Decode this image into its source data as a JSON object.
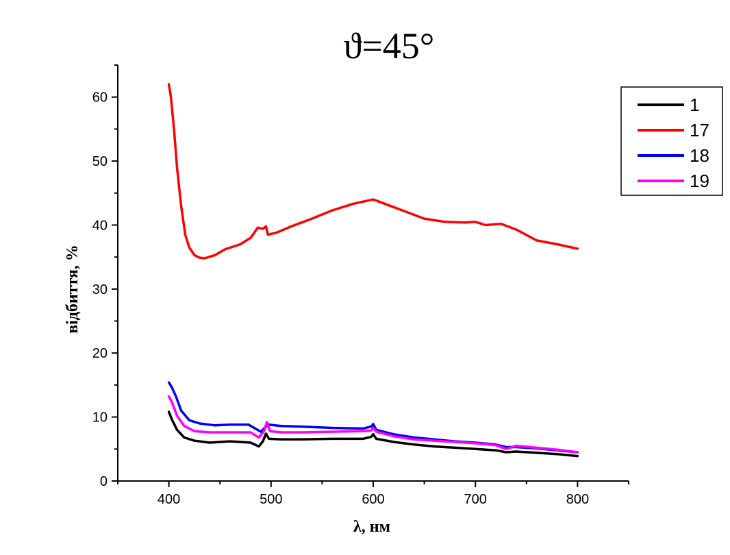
{
  "chart_data": {
    "type": "line",
    "title": "ϑ=45°",
    "xlabel": "λ, нм",
    "ylabel": "відбиття, %",
    "xlim": [
      350,
      850
    ],
    "ylim": [
      0,
      65
    ],
    "x_ticks": [
      400,
      500,
      600,
      700,
      800
    ],
    "y_ticks": [
      0,
      10,
      20,
      30,
      40,
      50,
      60
    ],
    "grid": false,
    "legend_position": "top-right",
    "series": [
      {
        "name": "1",
        "color": "#000000",
        "points": [
          [
            400,
            10.8
          ],
          [
            403,
            9.6
          ],
          [
            408,
            8.0
          ],
          [
            415,
            6.8
          ],
          [
            425,
            6.3
          ],
          [
            440,
            6.0
          ],
          [
            460,
            6.2
          ],
          [
            480,
            6.0
          ],
          [
            488,
            5.4
          ],
          [
            492,
            6.2
          ],
          [
            495,
            7.4
          ],
          [
            498,
            6.6
          ],
          [
            510,
            6.5
          ],
          [
            530,
            6.5
          ],
          [
            560,
            6.6
          ],
          [
            590,
            6.6
          ],
          [
            598,
            6.9
          ],
          [
            600,
            7.3
          ],
          [
            603,
            6.6
          ],
          [
            620,
            6.1
          ],
          [
            640,
            5.7
          ],
          [
            660,
            5.4
          ],
          [
            680,
            5.2
          ],
          [
            700,
            5.0
          ],
          [
            720,
            4.8
          ],
          [
            730,
            4.5
          ],
          [
            740,
            4.6
          ],
          [
            760,
            4.4
          ],
          [
            780,
            4.2
          ],
          [
            800,
            3.9
          ]
        ]
      },
      {
        "name": "17",
        "color": "#ff0000",
        "points": [
          [
            400,
            62
          ],
          [
            402,
            60
          ],
          [
            405,
            55
          ],
          [
            408,
            49
          ],
          [
            412,
            43
          ],
          [
            416,
            38.5
          ],
          [
            420,
            36.5
          ],
          [
            425,
            35.3
          ],
          [
            430,
            34.9
          ],
          [
            435,
            34.8
          ],
          [
            445,
            35.3
          ],
          [
            455,
            36.2
          ],
          [
            470,
            37.0
          ],
          [
            480,
            38.0
          ],
          [
            487,
            39.6
          ],
          [
            492,
            39.4
          ],
          [
            495,
            39.8
          ],
          [
            497,
            38.5
          ],
          [
            505,
            38.8
          ],
          [
            520,
            39.8
          ],
          [
            540,
            41.0
          ],
          [
            560,
            42.3
          ],
          [
            580,
            43.3
          ],
          [
            600,
            44.0
          ],
          [
            610,
            43.4
          ],
          [
            630,
            42.2
          ],
          [
            650,
            41.0
          ],
          [
            670,
            40.5
          ],
          [
            690,
            40.4
          ],
          [
            700,
            40.5
          ],
          [
            710,
            40.0
          ],
          [
            725,
            40.2
          ],
          [
            740,
            39.3
          ],
          [
            760,
            37.6
          ],
          [
            780,
            37.0
          ],
          [
            800,
            36.3
          ]
        ]
      },
      {
        "name": "18",
        "color": "#0000ff",
        "points": [
          [
            400,
            15.4
          ],
          [
            403,
            14.6
          ],
          [
            407,
            13.2
          ],
          [
            412,
            11.0
          ],
          [
            420,
            9.5
          ],
          [
            430,
            9.0
          ],
          [
            445,
            8.7
          ],
          [
            460,
            8.8
          ],
          [
            478,
            8.8
          ],
          [
            490,
            7.7
          ],
          [
            495,
            8.5
          ],
          [
            498,
            8.8
          ],
          [
            510,
            8.6
          ],
          [
            530,
            8.5
          ],
          [
            560,
            8.3
          ],
          [
            590,
            8.2
          ],
          [
            598,
            8.5
          ],
          [
            600,
            8.9
          ],
          [
            603,
            8.0
          ],
          [
            620,
            7.3
          ],
          [
            640,
            6.8
          ],
          [
            660,
            6.5
          ],
          [
            680,
            6.2
          ],
          [
            700,
            6.0
          ],
          [
            720,
            5.7
          ],
          [
            730,
            5.3
          ],
          [
            740,
            5.3
          ],
          [
            760,
            5.1
          ],
          [
            780,
            4.8
          ],
          [
            800,
            4.5
          ]
        ]
      },
      {
        "name": "19",
        "color": "#ff00ff",
        "points": [
          [
            400,
            13.2
          ],
          [
            403,
            12.3
          ],
          [
            408,
            10.2
          ],
          [
            415,
            8.6
          ],
          [
            425,
            7.8
          ],
          [
            440,
            7.6
          ],
          [
            460,
            7.6
          ],
          [
            480,
            7.6
          ],
          [
            488,
            6.8
          ],
          [
            493,
            7.8
          ],
          [
            496,
            9.2
          ],
          [
            499,
            7.8
          ],
          [
            510,
            7.6
          ],
          [
            530,
            7.6
          ],
          [
            560,
            7.7
          ],
          [
            590,
            7.8
          ],
          [
            598,
            7.9
          ],
          [
            600,
            8.3
          ],
          [
            603,
            7.7
          ],
          [
            620,
            7.0
          ],
          [
            640,
            6.5
          ],
          [
            660,
            6.3
          ],
          [
            680,
            6.1
          ],
          [
            700,
            5.9
          ],
          [
            720,
            5.6
          ],
          [
            730,
            5.0
          ],
          [
            740,
            5.5
          ],
          [
            760,
            5.2
          ],
          [
            780,
            4.9
          ],
          [
            800,
            4.5
          ]
        ]
      }
    ]
  }
}
